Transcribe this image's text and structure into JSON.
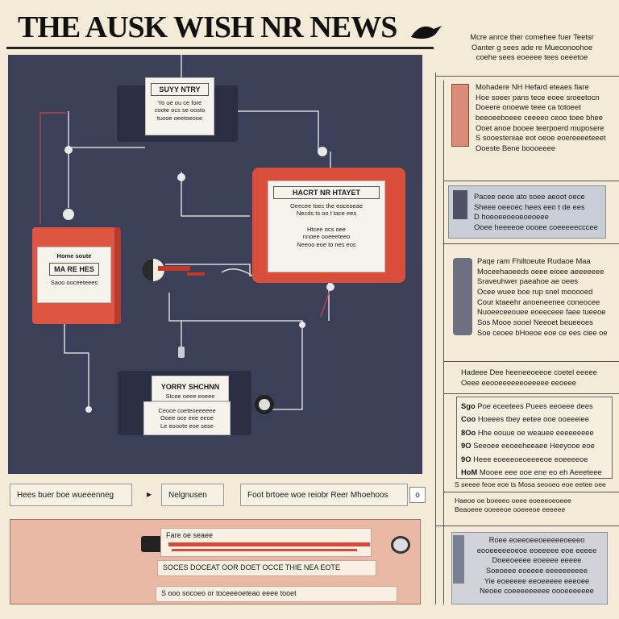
{
  "masthead": {
    "title": "THE AUSK WISH NR NEWS"
  },
  "diagram": {
    "top_card": {
      "heading": "SUYY NTRY",
      "lines": [
        "Yo ue ou ce fore",
        "coote ocs se oosto",
        "tuooe oeetoeooe"
      ]
    },
    "red_card": {
      "heading": "HACRT NR HTAYET",
      "lines": [
        "Oeecee toec the eoceoeae",
        "Necds ts oo t tace ees"
      ],
      "lines2": [
        "Htcee ocs oee",
        "nnoee ooeeeteeo",
        "Neeoo eoe to nes eos"
      ]
    },
    "left_card": {
      "heading": "Home soute",
      "subheading": "MA RE HES",
      "lines": [
        "Saoo ooceeteees"
      ]
    },
    "bottom_card": {
      "heading": "YORRY SHCHNN",
      "subheading": "Stcee oeee eoeee",
      "lines": [
        "Ceoce coeteoeeeeee",
        "Ooee oce eee eeoe",
        "Le eooote eoe sese"
      ]
    }
  },
  "controls": {
    "field1": "Hees buer boe wueeenneg",
    "arrow": "▸",
    "field2": "Nelgnusen",
    "field3": "Foot brtoee woe reiobr Reer Mhoehoos",
    "btn": "o"
  },
  "banner": {
    "top": "Fare oe seaee",
    "mid": "SOCES DOCEAT OOR DOET OCCE THIE NEA EOTE",
    "bot": "S ooo socoeo or toceeeoeteao eeee tooet"
  },
  "right": {
    "intro": [
      "Mcre anrce ther comehee fuer Teetsr",
      "Oanter g sees ade re Mueconoohoe",
      "coehe sees eoeeee tees oeeetoe"
    ],
    "block1": [
      "Mohadere NH Hefard eteaes fiare",
      "Hoe soeer pans tece eoee sroeetocn",
      "Doeere onoewe teee ca totoeet",
      "beeoeeboeee ceeeeo ceoo toee bhee",
      "Ooet anoe booee teerpoerd muposere",
      "S sooesteniae eot oeoe eoereeeeteeet",
      "Ooeste Bene boooeeee"
    ],
    "block2": [
      "Pacee oeoe ato soee aeoot oece",
      "Sheee oeeoec hees eeo t de ees",
      "D hoeoeeoeoeoeoeee",
      "Ooee heeeeoe oooee coeeeeecccee"
    ],
    "block3": [
      "Paqe ram Fhiltoeute Rudaoe Maa",
      "Moceehaoeeds oeee eioee aeeeeeee",
      "Sraveuhwer paeahoe ae oees",
      "Ocee wuee boe rup snel mooooed",
      "Cour ktaeehr anoeneenee coneocee",
      "Nuoeeceeouee eoeeceee faee tueeoe",
      "Sos Mooe sooel Neeoet beueeoes",
      "Soe ceoee bHoeoe eoe ce ees ciee oe"
    ],
    "block4": [
      "Hadeee Dee heeneeoeeoe coetel eeeee",
      "Oeee eeooeeeeeeoeeeee eeoeee"
    ],
    "list": [
      {
        "num": "Sgo",
        "text": "Poe eceetees Puees eeoeee dees"
      },
      {
        "num": "Coo",
        "text": "Hoeees tbey eetee ooe ooeeeiee"
      },
      {
        "num": "8Oo",
        "text": "Hhe oouue oe weauee eeeeeeeee"
      },
      {
        "num": "9O",
        "text": "Seeoee eeoeeheeaee Heeyooe eoe"
      },
      {
        "num": "9O",
        "text": "Heee eoeeeoeoeeeeoe eoeeeeoe"
      },
      {
        "num": "HoM",
        "text": "Mooee eee ooe ene eo eh Aeeeteee"
      }
    ],
    "block5": [
      "S seeee feoe eoe ts Mosa seooeo eoe eetee oee",
      "Haeoe oe boeeeo oeee eoeeeoeoeee",
      "Beaoeee ooeeeoe ooeeeoe eeeeee"
    ],
    "block6": [
      "Roee eoeeoeeoeeeeeoeeeo",
      "eooeeeeeoeoe eoeeeee eoe eeeee",
      "Doeeoeeee eoeeee eeeee",
      "Soeoeee eoeeee eeeeeeeeee",
      "Yie eoeeeee eeoeeeee eeeoee",
      "Neoee coeeeeeeeee oooeeeeeee"
    ]
  },
  "colors": {
    "panel": "#3b3f57",
    "accent_red": "#d94f3b",
    "paper": "#f3ead7"
  },
  "icons": [
    "bird-icon",
    "speaker-icon",
    "megaphone-icon",
    "pin-icon"
  ]
}
